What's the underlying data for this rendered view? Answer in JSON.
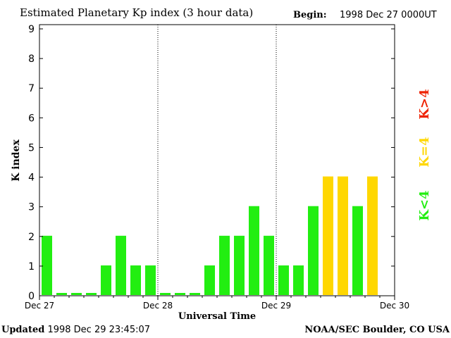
{
  "header": {
    "title": "Estimated Planetary Kp index (3 hour data)",
    "begin_label": "Begin:",
    "begin_value": "1998 Dec 27 0000UT"
  },
  "footer": {
    "updated_label": "Updated",
    "updated_value": "1998 Dec 29 23:45:07",
    "source": "NOAA/SEC Boulder, CO USA"
  },
  "legend": {
    "low": "K<4",
    "mid": "K=4",
    "high": "K>4"
  },
  "colors": {
    "low": "#22ee11",
    "mid": "#ffd700",
    "high": "#ee2200",
    "axis": "#000000"
  },
  "chart_data": {
    "type": "bar",
    "title": "Estimated Planetary Kp index (3 hour data)",
    "xlabel": "Universal Time",
    "ylabel": "K index",
    "ylim": [
      0,
      9
    ],
    "yticks": [
      0,
      1,
      2,
      3,
      4,
      5,
      6,
      7,
      8,
      9
    ],
    "x_tick_labels": [
      "Dec 27",
      "Dec 28",
      "Dec 29",
      "Dec 30"
    ],
    "day_separators": [
      "Dec 28",
      "Dec 29"
    ],
    "slots_per_day": 8,
    "values": [
      2,
      0,
      0,
      0,
      1,
      2,
      1,
      1,
      0,
      0,
      0,
      1,
      2,
      2,
      3,
      2,
      1,
      1,
      3,
      4,
      4,
      3,
      4
    ]
  }
}
